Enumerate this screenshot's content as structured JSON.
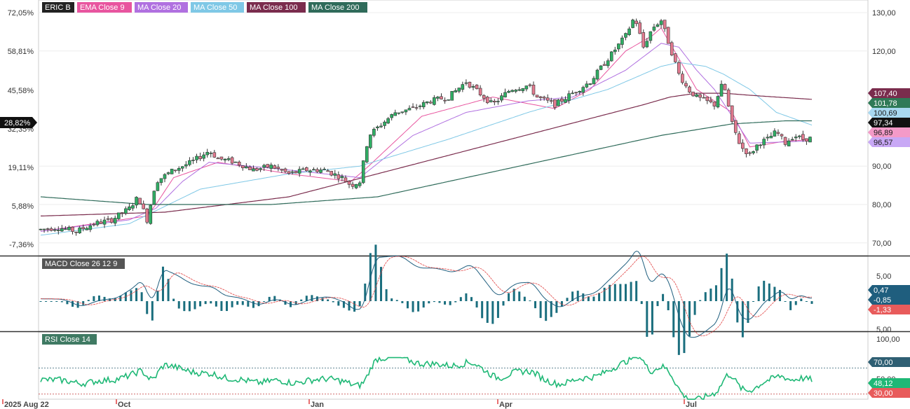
{
  "chart_data": {
    "type": "candlestick",
    "symbol": "ERIC B",
    "x_labels": [
      "2025 Aug 22",
      "Oct",
      "Jan",
      "Apr",
      "Jul"
    ],
    "legend": [
      {
        "label": "ERIC B",
        "color": "#222222"
      },
      {
        "label": "EMA  Close 9",
        "color": "#e8559f"
      },
      {
        "label": "MA  Close 20",
        "color": "#b070e0"
      },
      {
        "label": "MA  Close 50",
        "color": "#7fc8e6"
      },
      {
        "label": "MA  Close 100",
        "color": "#7a2c4d"
      },
      {
        "label": "MA  Close 200",
        "color": "#2f6b5a"
      }
    ],
    "price_axis": {
      "ticks": [
        "130,00",
        "120,00",
        "90,00",
        "80,00",
        "70,00"
      ],
      "tick_values": [
        130,
        120,
        90,
        80,
        70
      ],
      "range": [
        67,
        132
      ]
    },
    "pct_axis": {
      "ticks": [
        "72,05%",
        "58,81%",
        "45,58%",
        "32,35%",
        "19,11%",
        "5,88%",
        "-7,36%"
      ],
      "current": "28,82%"
    },
    "price_tags": [
      {
        "value": 107.4,
        "label": "107,40",
        "color": "#7a2c4d",
        "text": "#ffffff"
      },
      {
        "value": 101.78,
        "label": "101,78",
        "color": "#2f7a57",
        "text": "#ffffff"
      },
      {
        "value": 100.69,
        "label": "100,69",
        "color": "#a8d8f0",
        "text": "#1a1a1a"
      },
      {
        "value": 97.34,
        "label": "97,34",
        "color": "#111111",
        "text": "#ffffff"
      },
      {
        "value": 96.89,
        "label": "96,89",
        "color": "#f49ac8",
        "text": "#1a1a1a"
      },
      {
        "value": 96.57,
        "label": "96,57",
        "color": "#c8a8f5",
        "text": "#1a1a1a"
      }
    ],
    "price_keypoints": [
      [
        0,
        73.5
      ],
      [
        10,
        74
      ],
      [
        20,
        73
      ],
      [
        30,
        75
      ],
      [
        40,
        76
      ],
      [
        50,
        79
      ],
      [
        55,
        82
      ],
      [
        60,
        76
      ],
      [
        65,
        86
      ],
      [
        75,
        89
      ],
      [
        85,
        91
      ],
      [
        95,
        94
      ],
      [
        100,
        92
      ],
      [
        110,
        91
      ],
      [
        120,
        89
      ],
      [
        130,
        90
      ],
      [
        140,
        88
      ],
      [
        150,
        89
      ],
      [
        160,
        89
      ],
      [
        170,
        87
      ],
      [
        175,
        85
      ],
      [
        180,
        86
      ],
      [
        185,
        98
      ],
      [
        200,
        104
      ],
      [
        210,
        105
      ],
      [
        220,
        107
      ],
      [
        230,
        108
      ],
      [
        240,
        112
      ],
      [
        250,
        108
      ],
      [
        255,
        106
      ],
      [
        265,
        110
      ],
      [
        275,
        111
      ],
      [
        280,
        108
      ],
      [
        290,
        106
      ],
      [
        300,
        109
      ],
      [
        310,
        112
      ],
      [
        320,
        118
      ],
      [
        330,
        124
      ],
      [
        335,
        129
      ],
      [
        340,
        121
      ],
      [
        345,
        126
      ],
      [
        350,
        128
      ],
      [
        355,
        121
      ],
      [
        360,
        114
      ],
      [
        365,
        110
      ],
      [
        370,
        108
      ],
      [
        380,
        106
      ],
      [
        385,
        112
      ],
      [
        390,
        101
      ],
      [
        395,
        95
      ],
      [
        400,
        93
      ],
      [
        405,
        96
      ],
      [
        410,
        97
      ],
      [
        415,
        99
      ],
      [
        420,
        96
      ],
      [
        425,
        98
      ],
      [
        430,
        97
      ],
      [
        435,
        97.3
      ]
    ],
    "ma_keypoints": {
      "ema9": [
        [
          0,
          73
        ],
        [
          60,
          77
        ],
        [
          65,
          80
        ],
        [
          75,
          87
        ],
        [
          100,
          91
        ],
        [
          140,
          88
        ],
        [
          175,
          86
        ],
        [
          185,
          90
        ],
        [
          215,
          103
        ],
        [
          255,
          108
        ],
        [
          290,
          105
        ],
        [
          310,
          110
        ],
        [
          330,
          120
        ],
        [
          345,
          124
        ],
        [
          350,
          126
        ],
        [
          360,
          118
        ],
        [
          370,
          110
        ],
        [
          380,
          107
        ],
        [
          390,
          104
        ],
        [
          400,
          95
        ],
        [
          420,
          96.5
        ],
        [
          435,
          96.9
        ]
      ],
      "ma20": [
        [
          0,
          73
        ],
        [
          50,
          76
        ],
        [
          65,
          79
        ],
        [
          80,
          86
        ],
        [
          95,
          91
        ],
        [
          140,
          89
        ],
        [
          180,
          87
        ],
        [
          210,
          98
        ],
        [
          240,
          104
        ],
        [
          275,
          107
        ],
        [
          300,
          108
        ],
        [
          330,
          115
        ],
        [
          350,
          122
        ],
        [
          360,
          121
        ],
        [
          370,
          115
        ],
        [
          380,
          110
        ],
        [
          390,
          103
        ],
        [
          400,
          96
        ],
        [
          420,
          96.3
        ],
        [
          435,
          96.6
        ]
      ],
      "ma50": [
        [
          0,
          72
        ],
        [
          50,
          75
        ],
        [
          90,
          84
        ],
        [
          140,
          88
        ],
        [
          180,
          90
        ],
        [
          230,
          97
        ],
        [
          275,
          104
        ],
        [
          320,
          110
        ],
        [
          350,
          116
        ],
        [
          360,
          117
        ],
        [
          375,
          116
        ],
        [
          385,
          114
        ],
        [
          400,
          110
        ],
        [
          415,
          104
        ],
        [
          435,
          100.7
        ]
      ],
      "ma100": [
        [
          0,
          77
        ],
        [
          70,
          78
        ],
        [
          140,
          82
        ],
        [
          190,
          88
        ],
        [
          240,
          94
        ],
        [
          290,
          100
        ],
        [
          340,
          106
        ],
        [
          355,
          108
        ],
        [
          370,
          109
        ],
        [
          385,
          109
        ],
        [
          405,
          108.3
        ],
        [
          435,
          107.4
        ]
      ],
      "ma200": [
        [
          0,
          82
        ],
        [
          60,
          80
        ],
        [
          130,
          80
        ],
        [
          190,
          82
        ],
        [
          240,
          87
        ],
        [
          300,
          93
        ],
        [
          350,
          98
        ],
        [
          390,
          101
        ],
        [
          420,
          101.8
        ],
        [
          435,
          101.8
        ]
      ]
    },
    "macd": {
      "title": "MACD  Close 26 12 9",
      "ticks": [
        "5,00",
        "5,00"
      ],
      "tags": [
        {
          "label": "0,47",
          "color": "#1f5e7e",
          "text": "#ffffff",
          "value": 0.47
        },
        {
          "label": "-0,85",
          "color": "#1f5e7e",
          "text": "#ffffff",
          "value": -0.85
        },
        {
          "label": "-1,33",
          "color": "#e85b5b",
          "text": "#ffffff",
          "value": -1.33
        }
      ],
      "line_color": "#1f5e7e",
      "signal_color": "#e04040",
      "hist_color": "#1a6e7e"
    },
    "rsi": {
      "title": "RSI  Close 14",
      "ticks": [
        "100,00",
        "50,00"
      ],
      "levels": [
        70,
        30
      ],
      "tags": [
        {
          "label": "70,00",
          "color": "#2f5f73",
          "text": "#ffffff",
          "value": 70
        },
        {
          "label": "48,12",
          "color": "#1fb876",
          "text": "#ffffff",
          "value": 48.12
        },
        {
          "label": "30,00",
          "color": "#e85b5b",
          "text": "#ffffff",
          "value": 30
        }
      ],
      "line_color": "#1fb876"
    }
  }
}
